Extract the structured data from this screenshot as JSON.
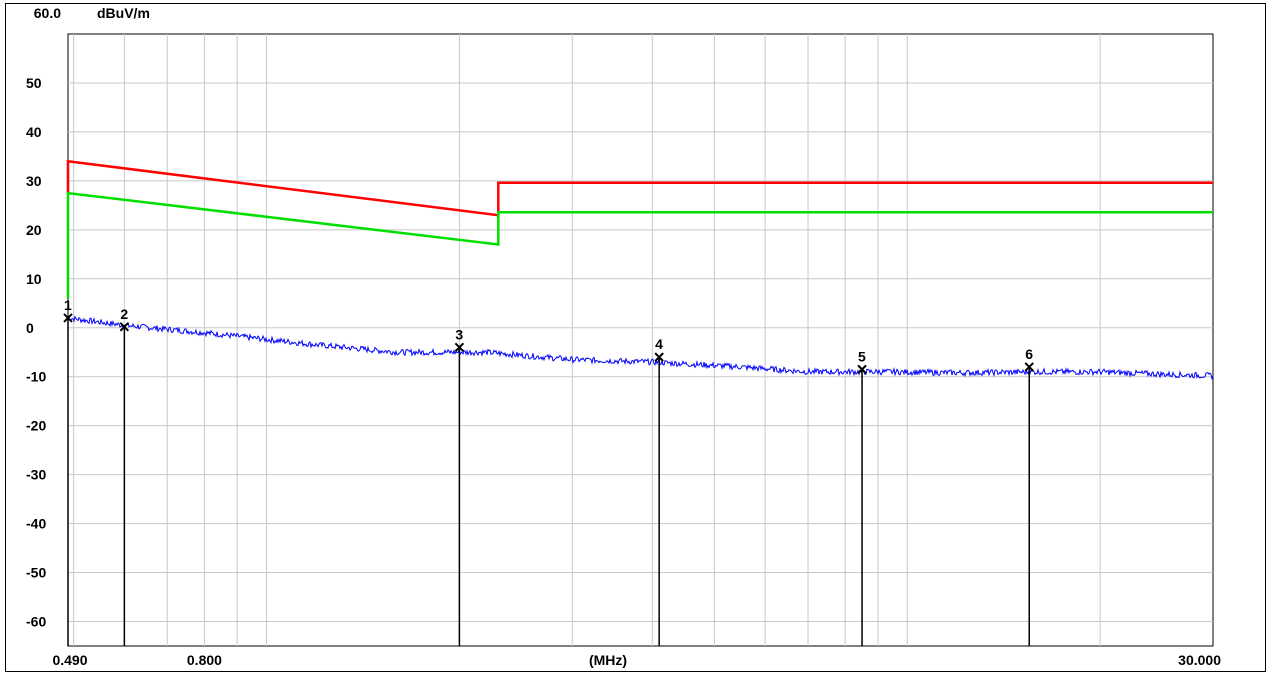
{
  "chart_data": {
    "type": "line",
    "title": "",
    "y_unit": "dBuV/m",
    "y_top_label": "60.0",
    "ylim": [
      -65,
      60
    ],
    "yticks": [
      50,
      40,
      30,
      20,
      10,
      0,
      -10,
      -20,
      -30,
      -40,
      -50,
      -60
    ],
    "ytick_labels": [
      "50",
      "40",
      "30",
      "20",
      "10",
      "0",
      "-10",
      "-20",
      "-30",
      "-40",
      "-50",
      "-60"
    ],
    "xscale": "log",
    "xlim": [
      0.49,
      30.0
    ],
    "xlabel": "(MHz)",
    "xtick_labels": [
      {
        "value": 0.49,
        "text": "0.490"
      },
      {
        "value": 0.8,
        "text": "0.800"
      },
      {
        "value": 30.0,
        "text": "30.000"
      }
    ],
    "grid": true,
    "x_gridlines": [
      0.5,
      0.6,
      0.7,
      0.8,
      0.9,
      1,
      2,
      3,
      4,
      5,
      6,
      7,
      8,
      9,
      10,
      20,
      30
    ],
    "series": [
      {
        "color": "#ff0000",
        "points": [
          [
            0.49,
            27.5
          ],
          [
            0.49,
            34.0
          ],
          [
            2.3,
            23.0
          ],
          [
            2.3,
            29.6
          ],
          [
            30.0,
            29.6
          ]
        ]
      },
      {
        "color": "#00e000",
        "points": [
          [
            0.49,
            6.0
          ],
          [
            0.49,
            27.5
          ],
          [
            2.3,
            17.0
          ],
          [
            2.3,
            23.6
          ],
          [
            30.0,
            23.6
          ]
        ]
      },
      {
        "color": "#0000ff",
        "noise": 0.6,
        "points": [
          [
            0.49,
            2.0
          ],
          [
            0.6,
            0.5
          ],
          [
            0.8,
            -1.0
          ],
          [
            1.2,
            -3.5
          ],
          [
            1.6,
            -5.0
          ],
          [
            2.2,
            -5.0
          ],
          [
            3.0,
            -6.5
          ],
          [
            4.0,
            -7.0
          ],
          [
            5.5,
            -8.0
          ],
          [
            7.0,
            -9.0
          ],
          [
            9.5,
            -9.0
          ],
          [
            12.0,
            -9.2
          ],
          [
            16.0,
            -9.0
          ],
          [
            20.0,
            -9.0
          ],
          [
            25.0,
            -9.5
          ],
          [
            30.0,
            -9.8
          ]
        ]
      }
    ],
    "markers": [
      {
        "label": "1",
        "x": 0.49,
        "y": 2.0
      },
      {
        "label": "2",
        "x": 0.6,
        "y": 0.2
      },
      {
        "label": "3",
        "x": 2.0,
        "y": -4.0
      },
      {
        "label": "4",
        "x": 4.1,
        "y": -6.0
      },
      {
        "label": "5",
        "x": 8.5,
        "y": -8.5
      },
      {
        "label": "6",
        "x": 15.5,
        "y": -8.0
      }
    ]
  }
}
